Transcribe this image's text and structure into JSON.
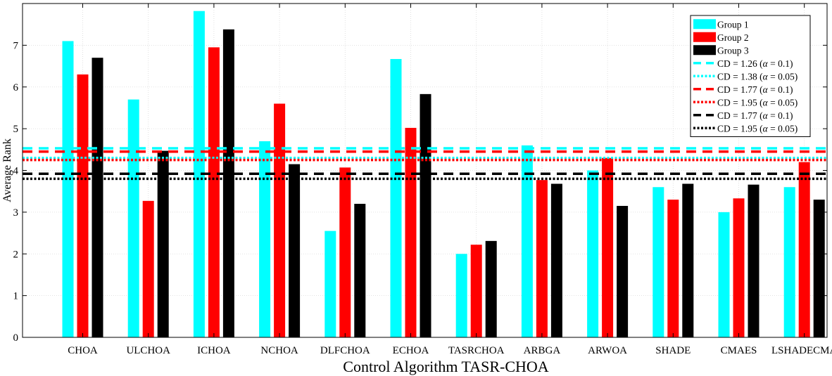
{
  "chart_data": {
    "type": "bar",
    "title": "",
    "xlabel": "Control Algorithm TASR-CHOA",
    "ylabel": "Average Rank",
    "ylim": [
      0,
      8
    ],
    "yticks": [
      0,
      1,
      2,
      3,
      4,
      5,
      6,
      7
    ],
    "grid": true,
    "legend_position": "top-right",
    "categories": [
      "CHOA",
      "ULCHOA",
      "ICHOA",
      "NCHOA",
      "DLFCHOA",
      "ECHOA",
      "TASRCHOA",
      "ARBGA",
      "ARWOA",
      "SHADE",
      "CMAES",
      "LSHADECMA"
    ],
    "series": [
      {
        "name": "Group 1",
        "color": "#00ffff",
        "values": [
          7.1,
          5.7,
          7.82,
          4.7,
          2.55,
          6.67,
          2.0,
          4.6,
          4.0,
          3.6,
          3.0,
          3.6
        ]
      },
      {
        "name": "Group 2",
        "color": "#ff0000",
        "values": [
          6.3,
          3.27,
          6.95,
          5.6,
          4.07,
          5.02,
          2.22,
          3.77,
          4.3,
          3.3,
          3.33,
          4.2
        ]
      },
      {
        "name": "Group 3",
        "color": "#000000",
        "values": [
          6.7,
          4.47,
          7.38,
          4.15,
          3.2,
          5.83,
          2.31,
          3.68,
          3.15,
          3.68,
          3.66,
          3.3
        ]
      }
    ],
    "cd_lines": [
      {
        "label": "CD = 1.26 (α = 0.1)",
        "value": 4.53,
        "color": "#00ffff",
        "style": "dashed"
      },
      {
        "label": "CD = 1.38 (α = 0.05)",
        "value": 4.3,
        "color": "#00ffff",
        "style": "dotted"
      },
      {
        "label": "CD = 1.77 (α = 0.1)",
        "value": 4.45,
        "color": "#ff0000",
        "style": "dashed"
      },
      {
        "label": "CD = 1.95 (α = 0.05)",
        "value": 4.25,
        "color": "#ff0000",
        "style": "dotted"
      },
      {
        "label": "CD = 1.77 (α = 0.1)",
        "value": 3.92,
        "color": "#000000",
        "style": "dashed"
      },
      {
        "label": "CD = 1.95 (α = 0.05)",
        "value": 3.8,
        "color": "#000000",
        "style": "dotted"
      }
    ]
  }
}
